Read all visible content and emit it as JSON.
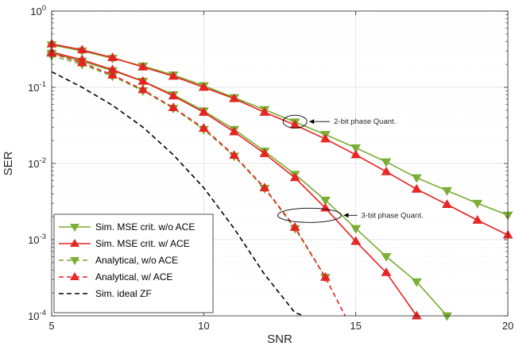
{
  "chart_data": {
    "type": "line",
    "title": "",
    "xlabel": "SNR",
    "ylabel": "SER",
    "xlim": [
      5,
      20
    ],
    "ylim": [
      0.0001,
      1
    ],
    "yscale": "log",
    "grid": true,
    "legend_position": "bottom-left",
    "x_ticks": [
      5,
      10,
      15,
      20
    ],
    "y_ticks": [
      {
        "value": 1,
        "base": "10",
        "exp": "0"
      },
      {
        "value": 0.1,
        "base": "10",
        "exp": "-1"
      },
      {
        "value": 0.01,
        "base": "10",
        "exp": "-2"
      },
      {
        "value": 0.001,
        "base": "10",
        "exp": "-3"
      },
      {
        "value": 0.0001,
        "base": "10",
        "exp": "-4"
      }
    ],
    "series": [
      {
        "name": "Sim. MSE crit. w/o ACE",
        "color": "#77AC30",
        "dash": "solid",
        "marker": "triangle-down",
        "x": [
          5,
          6,
          7,
          8,
          9,
          10,
          11,
          12,
          13,
          14,
          15,
          16,
          17,
          18,
          19,
          20
        ],
        "y": [
          0.36,
          0.3,
          0.24,
          0.19,
          0.145,
          0.105,
          0.073,
          0.051,
          0.035,
          0.024,
          0.016,
          0.0105,
          0.0065,
          0.0044,
          0.003,
          0.0021
        ]
      },
      {
        "name": "Sim. MSE crit. w/ ACE",
        "color": "#E82020",
        "dash": "solid",
        "marker": "triangle-up",
        "x": [
          5,
          6,
          7,
          8,
          9,
          10,
          11,
          12,
          13,
          14,
          15,
          16,
          17,
          18,
          19,
          20
        ],
        "y": [
          0.37,
          0.31,
          0.245,
          0.185,
          0.14,
          0.1,
          0.071,
          0.047,
          0.032,
          0.021,
          0.013,
          0.0078,
          0.0046,
          0.0029,
          0.0018,
          0.00115
        ]
      },
      {
        "name": "Analytical, w/o ACE",
        "color": "#77AC30",
        "dash": "dashed",
        "marker": "triangle-down",
        "x": [
          5,
          6,
          7,
          8,
          9,
          10,
          11,
          12,
          13,
          14
        ],
        "y": [
          0.26,
          0.2,
          0.14,
          0.09,
          0.053,
          0.028,
          0.0125,
          0.0047,
          0.0014,
          0.00032
        ]
      },
      {
        "name": "Analytical, w/ ACE",
        "color": "#E82020",
        "dash": "dashed",
        "marker": "triangle-up",
        "x": [
          5,
          6,
          7,
          8,
          9,
          10,
          11,
          12,
          13,
          14,
          14.65
        ],
        "y": [
          0.28,
          0.21,
          0.145,
          0.093,
          0.054,
          0.029,
          0.0128,
          0.0048,
          0.00145,
          0.00032,
          0.0001
        ]
      },
      {
        "name": "Sim. ideal ZF",
        "color": "#000000",
        "dash": "dashed",
        "marker": "none",
        "x": [
          5,
          6,
          7,
          8,
          9,
          10,
          11,
          12,
          13,
          13.3
        ],
        "y": [
          0.16,
          0.1,
          0.058,
          0.03,
          0.013,
          0.0048,
          0.0014,
          0.00035,
          0.00011,
          0.0001
        ]
      },
      {
        "name": "",
        "color": "#77AC30",
        "dash": "solid",
        "marker": "triangle-down",
        "x": [
          5,
          6,
          7,
          8,
          9,
          10,
          11,
          12,
          13,
          14,
          15,
          16,
          17,
          18
        ],
        "y": [
          0.28,
          0.22,
          0.165,
          0.12,
          0.08,
          0.049,
          0.028,
          0.0145,
          0.0072,
          0.0033,
          0.0014,
          0.0006,
          0.00028,
          0.0001
        ]
      },
      {
        "name": "",
        "color": "#E82020",
        "dash": "solid",
        "marker": "triangle-up",
        "x": [
          5,
          6,
          7,
          8,
          9,
          10,
          11,
          12,
          13,
          14,
          15,
          16,
          17
        ],
        "y": [
          0.29,
          0.23,
          0.17,
          0.12,
          0.077,
          0.047,
          0.026,
          0.0135,
          0.0065,
          0.0026,
          0.00095,
          0.00037,
          0.0001
        ]
      }
    ],
    "annotations": [
      {
        "text": "2-bit phase Quant.",
        "x": 13,
        "y": 0.033
      },
      {
        "text": "3-bit phase Quant.",
        "x": 14,
        "y": 0.0023
      }
    ]
  }
}
